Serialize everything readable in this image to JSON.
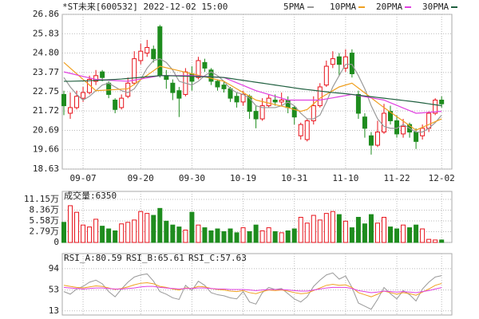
{
  "chart_data": [
    {
      "type": "candlestick",
      "title": "*ST未来[600532] 2022-12-02 15:00",
      "categories": [
        null,
        null,
        null,
        "09-07",
        null,
        null,
        null,
        null,
        null,
        null,
        null,
        null,
        "09-20",
        null,
        null,
        null,
        null,
        null,
        null,
        null,
        "09-30",
        null,
        null,
        null,
        null,
        null,
        null,
        null,
        "10-19",
        null,
        null,
        null,
        null,
        null,
        null,
        null,
        "10-31",
        null,
        null,
        null,
        null,
        null,
        null,
        null,
        "11-10",
        null,
        null,
        null,
        null,
        null,
        null,
        null,
        "11-22",
        null,
        null,
        null,
        null,
        null,
        null,
        "12-02"
      ],
      "open": [
        22.6,
        21.6,
        21.9,
        22.4,
        22.7,
        23.3,
        23.8,
        23.2,
        22.3,
        21.9,
        22.5,
        23.2,
        24.4,
        24.8,
        25.0,
        26.2,
        23.6,
        23.2,
        22.8,
        22.6,
        23.7,
        23.5,
        24.3,
        23.9,
        23.3,
        23.1,
        22.9,
        22.5,
        22.2,
        22.5,
        21.7,
        21.3,
        22.0,
        22.3,
        22.2,
        22.3,
        21.9,
        20.4,
        20.2,
        21.2,
        22.0,
        23.1,
        24.2,
        24.6,
        24.0,
        24.8,
        22.6,
        21.4,
        20.4,
        19.9,
        20.6,
        21.7,
        21.2,
        20.5,
        21.0,
        20.6,
        20.4,
        20.8,
        21.6,
        22.3
      ],
      "high": [
        22.8,
        22.7,
        22.8,
        23.0,
        23.6,
        23.9,
        23.9,
        23.3,
        22.4,
        22.6,
        23.5,
        24.9,
        25.3,
        25.5,
        25.2,
        26.3,
        23.9,
        23.4,
        23.0,
        24.0,
        24.1,
        24.6,
        24.5,
        24.0,
        23.4,
        23.3,
        23.0,
        22.7,
        22.8,
        22.6,
        22.0,
        22.4,
        22.6,
        22.6,
        22.7,
        22.5,
        22.0,
        21.1,
        21.3,
        22.5,
        23.2,
        24.4,
        24.9,
        24.8,
        25.0,
        25.0,
        22.8,
        21.6,
        20.6,
        21.2,
        22.1,
        22.0,
        21.5,
        21.3,
        21.1,
        20.8,
        21.0,
        21.7,
        22.4,
        22.5
      ],
      "low": [
        21.5,
        21.3,
        21.8,
        22.2,
        22.6,
        23.1,
        23.3,
        22.4,
        21.6,
        21.8,
        22.4,
        23.1,
        24.2,
        24.6,
        24.3,
        23.5,
        22.9,
        22.3,
        21.4,
        22.5,
        22.8,
        23.4,
        23.8,
        23.1,
        22.8,
        22.7,
        22.2,
        21.9,
        22.0,
        21.3,
        20.8,
        21.2,
        21.9,
        22.0,
        22.0,
        21.6,
        21.0,
        20.2,
        20.1,
        21.0,
        21.9,
        23.0,
        24.0,
        23.6,
        23.8,
        23.5,
        21.3,
        20.3,
        19.4,
        19.8,
        20.5,
        21.0,
        20.3,
        20.3,
        20.3,
        19.7,
        20.2,
        20.6,
        21.5,
        21.9
      ],
      "close": [
        22.0,
        21.9,
        22.5,
        22.7,
        23.4,
        23.6,
        23.5,
        22.6,
        21.8,
        22.4,
        23.2,
        24.5,
        24.9,
        25.1,
        24.5,
        23.6,
        23.4,
        22.7,
        22.4,
        23.8,
        23.3,
        24.4,
        24.0,
        23.3,
        23.0,
        22.9,
        22.4,
        22.2,
        22.6,
        21.7,
        21.3,
        22.0,
        22.4,
        22.2,
        22.3,
        21.9,
        21.4,
        21.0,
        21.2,
        22.0,
        23.0,
        24.1,
        24.5,
        24.2,
        24.6,
        23.7,
        21.6,
        20.8,
        19.9,
        20.6,
        21.6,
        21.2,
        20.5,
        20.9,
        20.6,
        20.1,
        20.8,
        21.6,
        22.3,
        22.1
      ],
      "up_color": "#e8141c",
      "down_color": "#1e8c1e",
      "series": [
        {
          "name": "5PMA",
          "color": "#999999",
          "values": [
            23.5,
            23.0,
            22.6,
            22.3,
            22.5,
            22.8,
            23.1,
            23.2,
            23.0,
            22.8,
            22.7,
            22.9,
            23.4,
            24.0,
            24.4,
            24.5,
            24.3,
            23.9,
            23.3,
            23.2,
            23.1,
            23.3,
            23.6,
            23.8,
            23.6,
            23.3,
            22.9,
            22.7,
            22.6,
            22.4,
            22.0,
            21.9,
            21.9,
            21.9,
            22.0,
            22.2,
            22.0,
            21.6,
            21.3,
            21.3,
            21.5,
            22.2,
            23.0,
            23.6,
            24.2,
            24.2,
            23.6,
            22.9,
            22.0,
            21.3,
            20.9,
            20.8,
            20.8,
            21.0,
            20.8,
            20.6,
            20.6,
            20.8,
            21.1,
            21.5
          ]
        },
        {
          "name": "10PMA",
          "color": "#f0a020",
          "values": [
            24.3,
            24.0,
            23.7,
            23.4,
            23.1,
            22.8,
            22.82,
            22.84,
            22.86,
            22.88,
            22.9,
            23.14,
            23.38,
            23.62,
            23.86,
            24.1,
            24.02,
            23.94,
            23.86,
            23.78,
            23.7,
            23.62,
            23.54,
            23.46,
            23.38,
            23.3,
            23.1,
            22.9,
            22.7,
            22.5,
            22.3,
            22.22,
            22.14,
            22.06,
            21.98,
            21.9,
            21.8,
            21.7,
            21.8,
            22.1,
            22.4,
            22.6,
            22.8,
            23.0,
            23.1,
            23.2,
            22.94,
            22.68,
            22.42,
            22.16,
            21.9,
            21.66,
            21.42,
            21.18,
            20.94,
            20.7,
            20.85,
            21.0,
            21.15,
            21.3
          ]
        },
        {
          "name": "20PMA",
          "color": "#e040e0",
          "values": [
            23.8,
            23.72,
            23.64,
            23.56,
            23.48,
            23.4,
            23.38,
            23.36,
            23.34,
            23.32,
            23.3,
            23.36,
            23.42,
            23.48,
            23.54,
            23.6,
            23.6,
            23.6,
            23.6,
            23.6,
            23.6,
            23.58,
            23.56,
            23.54,
            23.52,
            23.5,
            23.36,
            23.22,
            23.08,
            22.94,
            22.8,
            22.7,
            22.6,
            22.5,
            22.4,
            22.3,
            22.3,
            22.3,
            22.3,
            22.3,
            22.3,
            22.36,
            22.42,
            22.48,
            22.54,
            22.6,
            22.54,
            22.48,
            22.42,
            22.36,
            22.3,
            22.16,
            22.02,
            21.88,
            21.74,
            21.6,
            21.62,
            21.65,
            21.68,
            21.7
          ]
        },
        {
          "name": "30PMA",
          "color": "#206040",
          "values": [
            23.3,
            23.3,
            23.31,
            23.32,
            23.33,
            23.35,
            23.36,
            23.38,
            23.4,
            23.42,
            23.45,
            23.48,
            23.51,
            23.54,
            23.57,
            23.6,
            23.6,
            23.59,
            23.58,
            23.57,
            23.56,
            23.55,
            23.54,
            23.53,
            23.52,
            23.5,
            23.45,
            23.4,
            23.35,
            23.3,
            23.25,
            23.2,
            23.15,
            23.1,
            23.05,
            23.0,
            22.95,
            22.9,
            22.86,
            22.82,
            22.78,
            22.74,
            22.7,
            22.67,
            22.64,
            22.6,
            22.56,
            22.52,
            22.48,
            22.44,
            22.4,
            22.36,
            22.32,
            22.28,
            22.24,
            22.2,
            22.15,
            22.1,
            22.05,
            22.0
          ]
        }
      ],
      "ylim": [
        18.63,
        26.86
      ],
      "yticks": [
        {
          "value": 26.86,
          "label": "26.86"
        },
        {
          "value": 25.83,
          "label": "25.83"
        },
        {
          "value": 24.8,
          "label": "24.80"
        },
        23.77,
        22.75,
        21.72,
        20.69,
        19.66,
        18.63
      ],
      "grid": true
    },
    {
      "type": "bar",
      "title": "成交量:6350",
      "values": [
        5.2,
        9.5,
        7.8,
        4.5,
        4.0,
        6.0,
        4.2,
        3.5,
        3.0,
        4.8,
        5.2,
        5.8,
        8.0,
        7.5,
        7.0,
        8.8,
        5.5,
        4.5,
        4.0,
        3.2,
        7.8,
        4.5,
        3.8,
        3.0,
        3.5,
        2.8,
        3.5,
        2.5,
        3.8,
        2.8,
        4.5,
        3.0,
        3.8,
        2.8,
        2.5,
        3.0,
        3.5,
        6.5,
        5.0,
        7.0,
        5.8,
        7.5,
        8.0,
        7.2,
        5.5,
        3.8,
        6.5,
        4.8,
        7.2,
        5.0,
        6.5,
        4.0,
        3.5,
        4.5,
        3.8,
        4.5,
        3.5,
        0.8,
        0.635,
        0.635
      ],
      "ylim": [
        0,
        13.2
      ],
      "yticks": [
        {
          "value": 11.15,
          "label": "11.15万"
        },
        {
          "value": 8.36,
          "label": "8.36万"
        },
        {
          "value": 5.58,
          "label": "5.58万"
        },
        {
          "value": 2.79,
          "label": "2.79万"
        },
        0
      ],
      "grid": true
    },
    {
      "type": "line",
      "legend_labels": [
        "RSI_A:80.59",
        "RSI_B:65.61",
        "RSI_C:57.63"
      ],
      "series": [
        {
          "name": "RSI_A",
          "color": "#999999",
          "values": [
            50,
            45,
            55,
            60,
            68,
            72,
            65,
            50,
            40,
            55,
            68,
            78,
            82,
            84,
            70,
            50,
            45,
            38,
            35,
            62,
            52,
            70,
            62,
            48,
            44,
            42,
            38,
            36,
            50,
            30,
            26,
            48,
            58,
            54,
            56,
            46,
            36,
            30,
            40,
            60,
            72,
            82,
            86,
            74,
            80,
            58,
            28,
            22,
            16,
            35,
            58,
            46,
            36,
            52,
            44,
            32,
            55,
            68,
            78,
            80.59
          ]
        },
        {
          "name": "RSI_B",
          "color": "#f0a020",
          "values": [
            62,
            60,
            58,
            57,
            59,
            61,
            60,
            57,
            54,
            56,
            59,
            63,
            66,
            67,
            65,
            60,
            58,
            55,
            53,
            57,
            56,
            60,
            59,
            56,
            54,
            53,
            51,
            50,
            52,
            48,
            46,
            50,
            53,
            52,
            53,
            51,
            48,
            46,
            47,
            52,
            57,
            62,
            64,
            62,
            63,
            58,
            48,
            44,
            40,
            45,
            51,
            48,
            45,
            48,
            46,
            43,
            49,
            55,
            62,
            65.61
          ]
        },
        {
          "name": "RSI_C",
          "color": "#e040e0",
          "values": [
            58,
            57,
            56,
            55,
            56,
            57,
            57,
            56,
            55,
            55,
            56,
            57,
            59,
            60,
            60,
            58,
            57,
            56,
            55,
            56,
            56,
            57,
            57,
            56,
            55,
            55,
            54,
            54,
            54,
            53,
            52,
            53,
            54,
            54,
            54,
            53,
            52,
            51,
            51,
            53,
            55,
            57,
            58,
            58,
            58,
            56,
            52,
            50,
            48,
            49,
            51,
            50,
            49,
            50,
            49,
            48,
            50,
            52,
            55,
            57.63
          ]
        }
      ],
      "ylim": [
        5,
        123
      ],
      "yticks": [
        94,
        53,
        13
      ],
      "grid": true
    }
  ]
}
